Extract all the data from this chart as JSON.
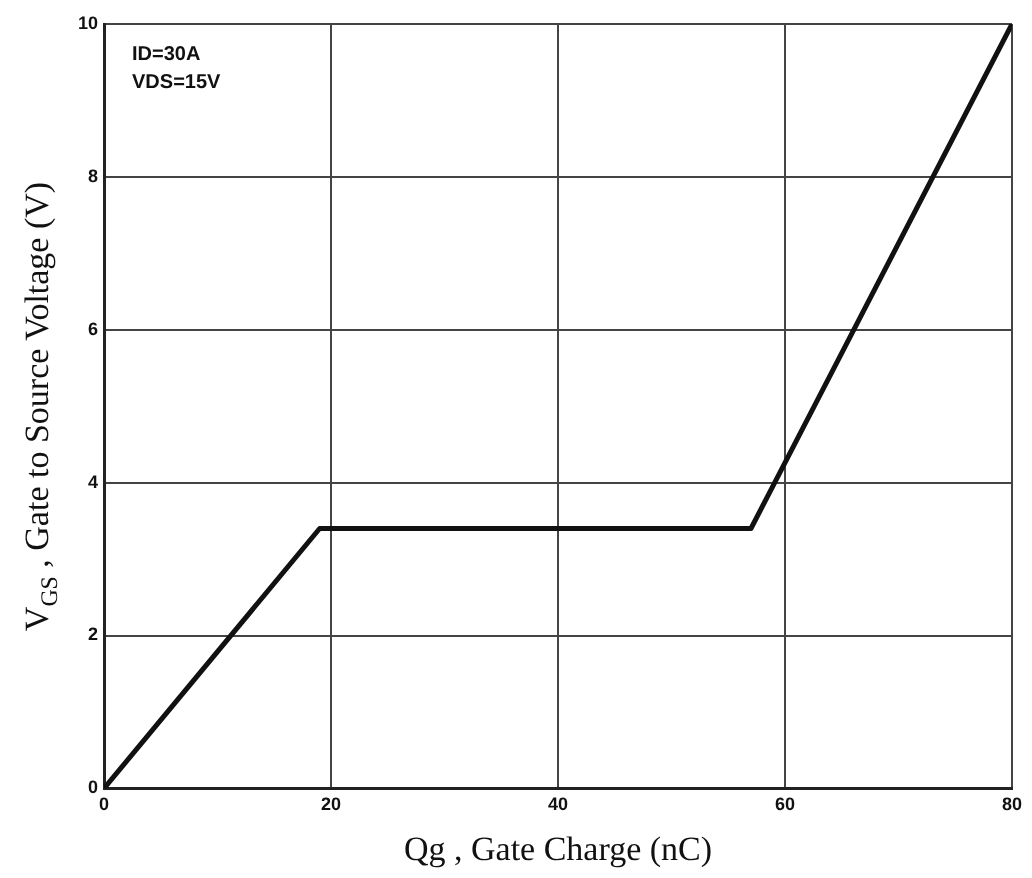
{
  "chart_data": {
    "type": "line",
    "xlabel": "Qg , Gate Charge (nC)",
    "ylabel": "V$_{GS}$ , Gate to Source Voltage (V)",
    "annotations": [
      "ID=30A",
      "VDS=15V"
    ],
    "series": [
      {
        "color": "#111111",
        "x": [
          0,
          19,
          57,
          80
        ],
        "values": [
          0,
          3.4,
          3.4,
          10
        ]
      }
    ],
    "xlim": [
      0,
      80
    ],
    "xticks": [
      0,
      20,
      40,
      60,
      80
    ],
    "ylim": [
      0,
      10
    ],
    "yticks": [
      0,
      2,
      4,
      6,
      8,
      10
    ],
    "grid": true,
    "marker": "none",
    "line_style": "solid"
  }
}
